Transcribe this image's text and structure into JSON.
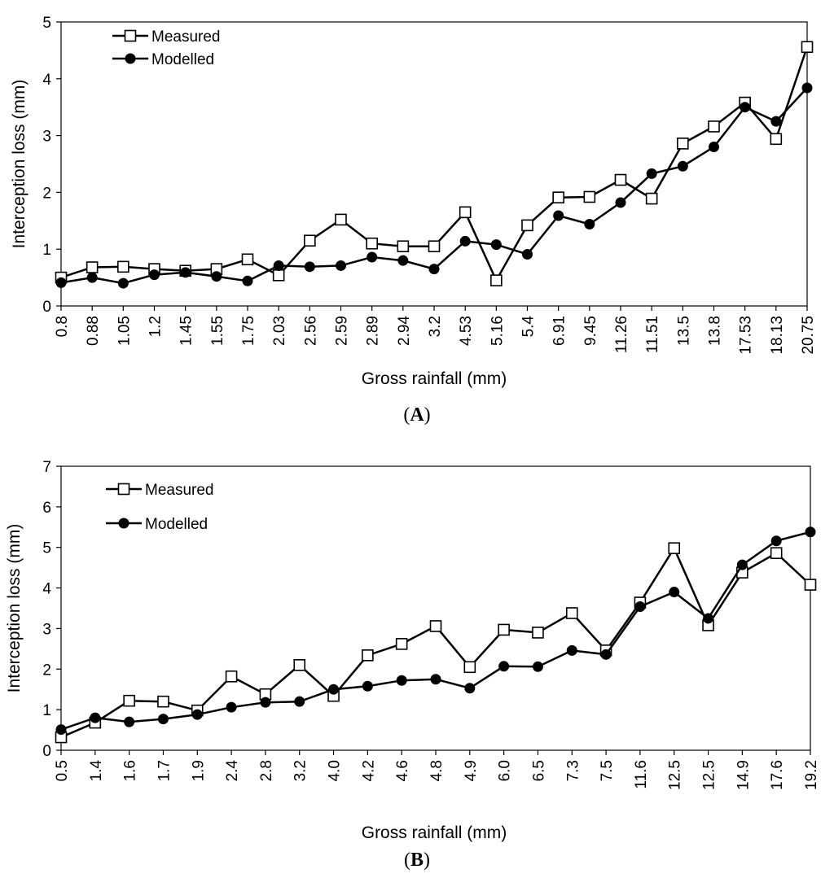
{
  "chart_data": [
    {
      "type": "line",
      "panel": "A",
      "xlabel": "Gross rainfall (mm)",
      "ylabel": "Interception loss (mm)",
      "ylim": [
        0,
        5
      ],
      "yticks": [
        0,
        1,
        2,
        3,
        4,
        5
      ],
      "grid": false,
      "legend": "top-left",
      "categories": [
        "0.8",
        "0.88",
        "1.05",
        "1.2",
        "1.45",
        "1.55",
        "1.75",
        "2.03",
        "2.56",
        "2.59",
        "2.89",
        "2.94",
        "3.2",
        "4.53",
        "5.16",
        "5.4",
        "6.91",
        "9.45",
        "11.26",
        "11.51",
        "13.5",
        "13.8",
        "17.53",
        "18.13",
        "20.75"
      ],
      "series": [
        {
          "name": "Measured",
          "marker": "open-square",
          "values": [
            0.5,
            0.68,
            0.69,
            0.65,
            0.62,
            0.65,
            0.82,
            0.54,
            1.15,
            1.52,
            1.1,
            1.05,
            1.05,
            1.65,
            0.45,
            1.42,
            1.91,
            1.92,
            2.22,
            1.89,
            2.86,
            3.16,
            3.58,
            2.94,
            4.56
          ]
        },
        {
          "name": "Modelled",
          "marker": "filled-circle",
          "values": [
            0.41,
            0.5,
            0.4,
            0.55,
            0.59,
            0.52,
            0.44,
            0.71,
            0.69,
            0.71,
            0.86,
            0.8,
            0.65,
            1.14,
            1.08,
            0.91,
            1.59,
            1.44,
            1.82,
            2.33,
            2.46,
            2.8,
            3.5,
            3.25,
            3.84
          ]
        }
      ]
    },
    {
      "type": "line",
      "panel": "B",
      "xlabel": "Gross rainfall (mm)",
      "ylabel": "Interception loss (mm)",
      "ylim": [
        0,
        7
      ],
      "yticks": [
        0,
        1,
        2,
        3,
        4,
        5,
        6,
        7
      ],
      "grid": false,
      "legend": "top-left",
      "categories": [
        "0.5",
        "1.4",
        "1.6",
        "1.7",
        "1.9",
        "2.4",
        "2.8",
        "3.2",
        "4.0",
        "4.2",
        "4.6",
        "4.8",
        "4.9",
        "6.0",
        "6.5",
        "7.3",
        "7.5",
        "11.6",
        "12.5",
        "12.5",
        "14.9",
        "17.6",
        "19.2"
      ],
      "series": [
        {
          "name": "Measured",
          "marker": "open-square",
          "values": [
            0.32,
            0.68,
            1.22,
            1.2,
            0.98,
            1.82,
            1.38,
            2.1,
            1.34,
            2.34,
            2.62,
            3.06,
            2.05,
            2.97,
            2.9,
            3.38,
            2.46,
            3.64,
            4.98,
            3.08,
            4.38,
            4.86,
            4.08
          ]
        },
        {
          "name": "Modelled",
          "marker": "filled-circle",
          "values": [
            0.51,
            0.8,
            0.7,
            0.77,
            0.88,
            1.06,
            1.18,
            1.2,
            1.5,
            1.58,
            1.72,
            1.75,
            1.53,
            2.07,
            2.06,
            2.46,
            2.36,
            3.54,
            3.9,
            3.25,
            4.57,
            5.16,
            5.38
          ]
        }
      ]
    }
  ],
  "panel_labels": {
    "a": "A",
    "b": "B"
  }
}
